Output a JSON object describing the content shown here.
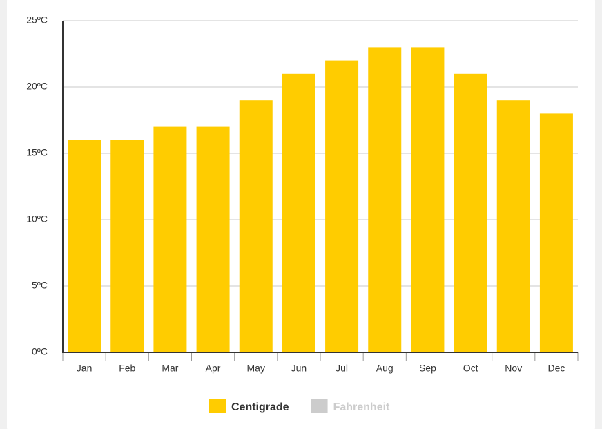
{
  "chart_data": {
    "type": "bar",
    "categories": [
      "Jan",
      "Feb",
      "Mar",
      "Apr",
      "May",
      "Jun",
      "Jul",
      "Aug",
      "Sep",
      "Oct",
      "Nov",
      "Dec"
    ],
    "series": [
      {
        "name": "Centigrade",
        "color": "#ffcc00",
        "values": [
          16,
          16,
          17,
          17,
          19,
          21,
          22,
          23,
          23,
          21,
          19,
          18
        ]
      }
    ],
    "hidden_series": [
      {
        "name": "Fahrenheit",
        "color": "#cccccc"
      }
    ],
    "ylim": [
      0,
      25
    ],
    "yticks": [
      {
        "value": 0,
        "label": "0ºC"
      },
      {
        "value": 5,
        "label": "5ºC"
      },
      {
        "value": 10,
        "label": "10ºC"
      },
      {
        "value": 15,
        "label": "15ºC"
      },
      {
        "value": 20,
        "label": "20ºC"
      },
      {
        "value": 25,
        "label": "25ºC"
      }
    ],
    "grid": true
  }
}
